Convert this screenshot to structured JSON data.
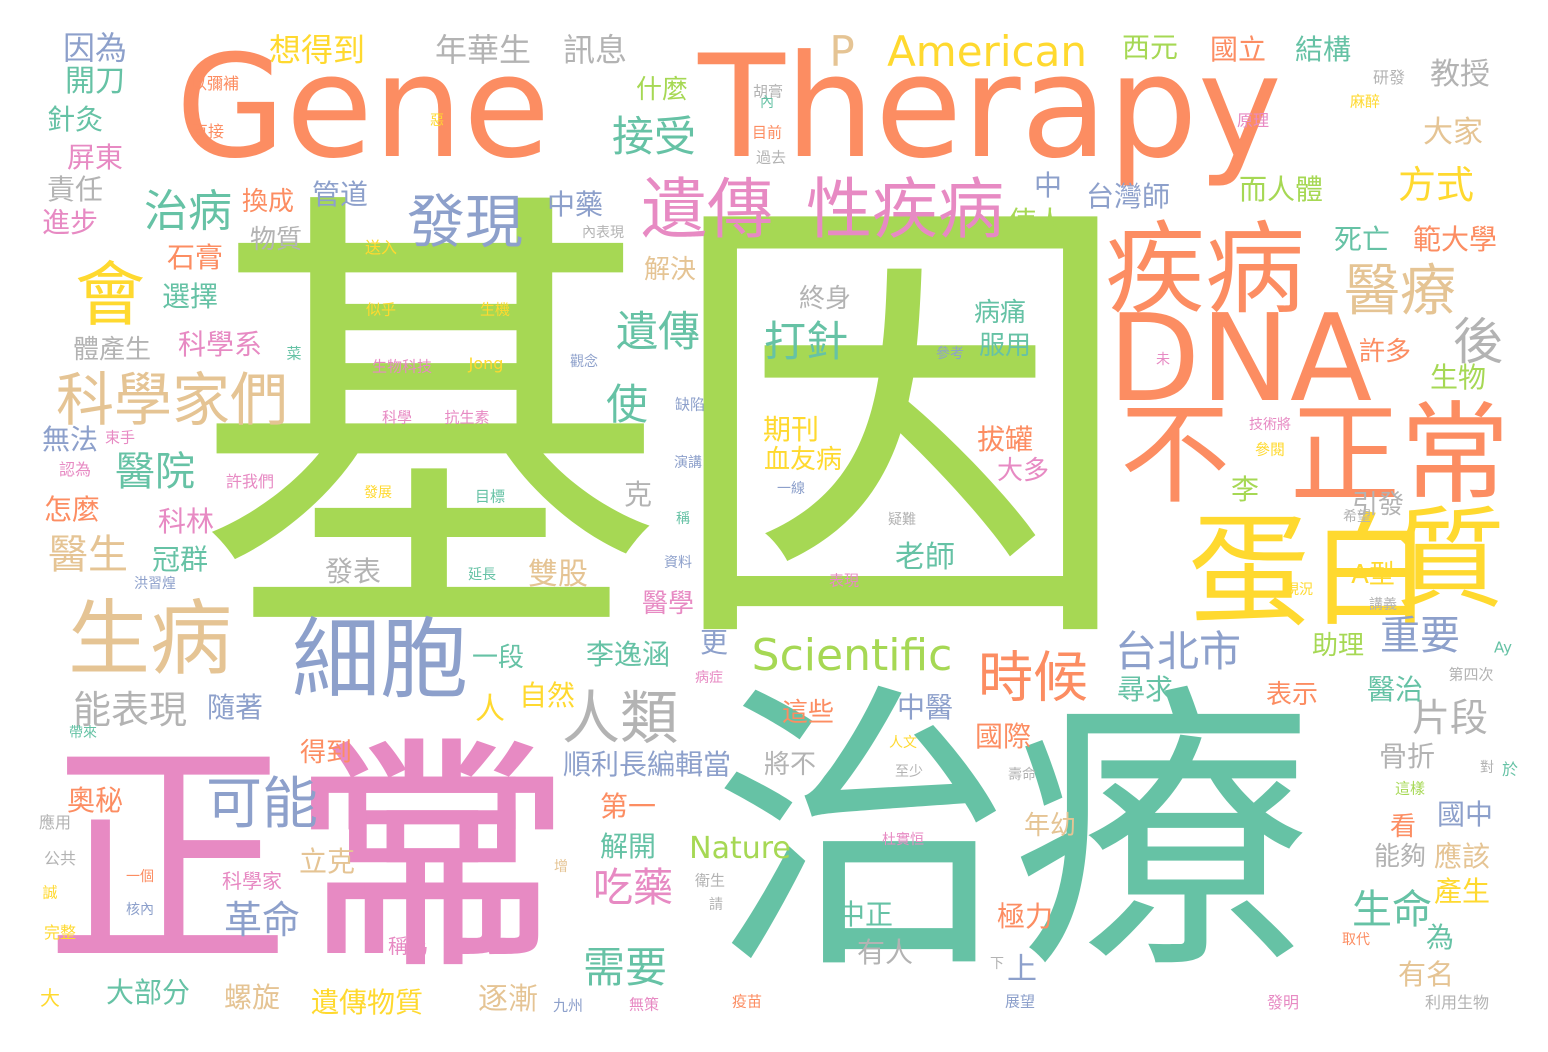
{
  "palette": {
    "green": "#a6d854",
    "orange": "#fc8d62",
    "teal": "#66c2a5",
    "pink": "#e78ac3",
    "blue": "#8da0cb",
    "yellow": "#ffd92f",
    "tan": "#e5c494",
    "gray": "#b3b3b3"
  },
  "words": [
    {
      "text": "基因",
      "color": "green"
    },
    {
      "text": "Gene",
      "color": "orange"
    },
    {
      "text": "Therapy",
      "color": "orange"
    },
    {
      "text": "治療",
      "color": "teal"
    },
    {
      "text": "正常",
      "color": "pink"
    },
    {
      "text": "常",
      "color": "pink"
    },
    {
      "text": "DNA",
      "color": "orange"
    },
    {
      "text": "蛋白",
      "color": "yellow"
    },
    {
      "text": "質",
      "color": "yellow"
    },
    {
      "text": "不",
      "color": "orange"
    },
    {
      "text": "正常",
      "color": "orange"
    },
    {
      "text": "疾病",
      "color": "orange"
    },
    {
      "text": "細胞",
      "color": "blue"
    },
    {
      "text": "生病",
      "color": "tan"
    },
    {
      "text": "遺傳",
      "color": "pink"
    },
    {
      "text": "性疾病",
      "color": "pink"
    },
    {
      "text": "會",
      "color": "yellow"
    },
    {
      "text": "科學家們",
      "color": "tan"
    },
    {
      "text": "發現",
      "color": "blue"
    },
    {
      "text": "人類",
      "color": "gray"
    },
    {
      "text": "可能",
      "color": "blue"
    },
    {
      "text": "時候",
      "color": "orange"
    },
    {
      "text": "醫療",
      "color": "tan"
    },
    {
      "text": "後",
      "color": "gray"
    },
    {
      "text": "Scientific",
      "color": "green"
    },
    {
      "text": "American",
      "color": "yellow"
    },
    {
      "text": "P",
      "color": "tan"
    },
    {
      "text": "台北市",
      "color": "blue"
    },
    {
      "text": "治病",
      "color": "teal"
    },
    {
      "text": "接受",
      "color": "teal"
    },
    {
      "text": "遺傳",
      "color": "teal"
    },
    {
      "text": "使",
      "color": "teal"
    },
    {
      "text": "打針",
      "color": "teal"
    },
    {
      "text": "醫院",
      "color": "teal"
    },
    {
      "text": "醫生",
      "color": "tan"
    },
    {
      "text": "能表現",
      "color": "gray"
    },
    {
      "text": "吃藥",
      "color": "pink"
    },
    {
      "text": "需要",
      "color": "teal"
    },
    {
      "text": "革命",
      "color": "blue"
    },
    {
      "text": "生命",
      "color": "teal"
    },
    {
      "text": "重要",
      "color": "blue"
    },
    {
      "text": "方式",
      "color": "yellow"
    },
    {
      "text": "片段",
      "color": "gray"
    },
    {
      "text": "想得到",
      "color": "yellow"
    },
    {
      "text": "年華生",
      "color": "gray"
    },
    {
      "text": "訊息",
      "color": "gray"
    },
    {
      "text": "因為",
      "color": "blue"
    },
    {
      "text": "開刀",
      "color": "teal"
    },
    {
      "text": "針灸",
      "color": "teal"
    },
    {
      "text": "屏東",
      "color": "pink"
    },
    {
      "text": "責任",
      "color": "gray"
    },
    {
      "text": "進步",
      "color": "pink"
    },
    {
      "text": "西元",
      "color": "green"
    },
    {
      "text": "國立",
      "color": "orange"
    },
    {
      "text": "結構",
      "color": "teal"
    },
    {
      "text": "教授",
      "color": "gray"
    },
    {
      "text": "大家",
      "color": "tan"
    },
    {
      "text": "什麼",
      "color": "green"
    },
    {
      "text": "而人體",
      "color": "green"
    },
    {
      "text": "台灣師",
      "color": "blue"
    },
    {
      "text": "中",
      "color": "blue"
    },
    {
      "text": "中藥",
      "color": "blue"
    },
    {
      "text": "管道",
      "color": "blue"
    },
    {
      "text": "換成",
      "color": "orange"
    },
    {
      "text": "物質",
      "color": "gray"
    },
    {
      "text": "石膏",
      "color": "orange"
    },
    {
      "text": "選擇",
      "color": "teal"
    },
    {
      "text": "科學系",
      "color": "pink"
    },
    {
      "text": "體產生",
      "color": "gray"
    },
    {
      "text": "無法",
      "color": "blue"
    },
    {
      "text": "怎麼",
      "color": "orange"
    },
    {
      "text": "科林",
      "color": "pink"
    },
    {
      "text": "冠群",
      "color": "teal"
    },
    {
      "text": "死亡",
      "color": "teal"
    },
    {
      "text": "範大學",
      "color": "orange"
    },
    {
      "text": "使人",
      "color": "green"
    },
    {
      "text": "解決",
      "color": "tan"
    },
    {
      "text": "終身",
      "color": "gray"
    },
    {
      "text": "病痛",
      "color": "teal"
    },
    {
      "text": "服用",
      "color": "teal"
    },
    {
      "text": "期刊",
      "color": "yellow"
    },
    {
      "text": "血友病",
      "color": "yellow"
    },
    {
      "text": "拔罐",
      "color": "orange"
    },
    {
      "text": "大多",
      "color": "pink"
    },
    {
      "text": "許多",
      "color": "orange"
    },
    {
      "text": "生物",
      "color": "green"
    },
    {
      "text": "李",
      "color": "green"
    },
    {
      "text": "引發",
      "color": "gray"
    },
    {
      "text": "老師",
      "color": "teal"
    },
    {
      "text": "克",
      "color": "gray"
    },
    {
      "text": "發表",
      "color": "gray"
    },
    {
      "text": "雙股",
      "color": "tan"
    },
    {
      "text": "A型",
      "color": "yellow"
    },
    {
      "text": "一段",
      "color": "teal"
    },
    {
      "text": "李逸涵",
      "color": "teal"
    },
    {
      "text": "醫學",
      "color": "pink"
    },
    {
      "text": "更",
      "color": "blue"
    },
    {
      "text": "自然",
      "color": "yellow"
    },
    {
      "text": "人",
      "color": "yellow"
    },
    {
      "text": "助理",
      "color": "green"
    },
    {
      "text": "醫治",
      "color": "teal"
    },
    {
      "text": "尋求",
      "color": "teal"
    },
    {
      "text": "表示",
      "color": "orange"
    },
    {
      "text": "隨著",
      "color": "blue"
    },
    {
      "text": "中醫",
      "color": "blue"
    },
    {
      "text": "這些",
      "color": "orange"
    },
    {
      "text": "國際",
      "color": "orange"
    },
    {
      "text": "順利長編輯當",
      "color": "blue"
    },
    {
      "text": "將不",
      "color": "gray"
    },
    {
      "text": "骨折",
      "color": "gray"
    },
    {
      "text": "奧秘",
      "color": "orange"
    },
    {
      "text": "得到",
      "color": "orange"
    },
    {
      "text": "第一",
      "color": "orange"
    },
    {
      "text": "解開",
      "color": "teal"
    },
    {
      "text": "Nature",
      "color": "green"
    },
    {
      "text": "年幼",
      "color": "tan"
    },
    {
      "text": "國中",
      "color": "blue"
    },
    {
      "text": "看",
      "color": "orange"
    },
    {
      "text": "能夠",
      "color": "gray"
    },
    {
      "text": "應該",
      "color": "tan"
    },
    {
      "text": "產生",
      "color": "yellow"
    },
    {
      "text": "立克",
      "color": "tan"
    },
    {
      "text": "中正",
      "color": "teal"
    },
    {
      "text": "有人",
      "color": "gray"
    },
    {
      "text": "極力",
      "color": "orange"
    },
    {
      "text": "為",
      "color": "teal"
    },
    {
      "text": "上",
      "color": "blue"
    },
    {
      "text": "有名",
      "color": "tan"
    },
    {
      "text": "大部分",
      "color": "teal"
    },
    {
      "text": "螺旋",
      "color": "tan"
    },
    {
      "text": "遺傳物質",
      "color": "yellow"
    },
    {
      "text": "逐漸",
      "color": "tan"
    },
    {
      "text": "大",
      "color": "yellow"
    },
    {
      "text": "研發",
      "color": "gray"
    },
    {
      "text": "麻醉",
      "color": "yellow"
    },
    {
      "text": "原理",
      "color": "pink"
    },
    {
      "text": "胡膏",
      "color": "gray"
    },
    {
      "text": "以彌補",
      "color": "orange"
    },
    {
      "text": "直接",
      "color": "orange"
    },
    {
      "text": "惡",
      "color": "yellow"
    },
    {
      "text": "內",
      "color": "teal"
    },
    {
      "text": "目前",
      "color": "orange"
    },
    {
      "text": "過去",
      "color": "gray"
    },
    {
      "text": "內表現",
      "color": "gray"
    },
    {
      "text": "送入",
      "color": "yellow"
    },
    {
      "text": "似乎",
      "color": "yellow"
    },
    {
      "text": "生機",
      "color": "yellow"
    },
    {
      "text": "生物科技",
      "color": "pink"
    },
    {
      "text": "Jong",
      "color": "yellow"
    },
    {
      "text": "觀念",
      "color": "blue"
    },
    {
      "text": "參考",
      "color": "blue"
    },
    {
      "text": "未",
      "color": "pink"
    },
    {
      "text": "菜",
      "color": "teal"
    },
    {
      "text": "科學",
      "color": "pink"
    },
    {
      "text": "抗生素",
      "color": "pink"
    },
    {
      "text": "缺陷",
      "color": "blue"
    },
    {
      "text": "束手",
      "color": "pink"
    },
    {
      "text": "認為",
      "color": "pink"
    },
    {
      "text": "許我們",
      "color": "pink"
    },
    {
      "text": "演講",
      "color": "blue"
    },
    {
      "text": "技術將",
      "color": "pink"
    },
    {
      "text": "參閱",
      "color": "yellow"
    },
    {
      "text": "發展",
      "color": "yellow"
    },
    {
      "text": "目標",
      "color": "teal"
    },
    {
      "text": "一線",
      "color": "blue"
    },
    {
      "text": "疑難",
      "color": "gray"
    },
    {
      "text": "希望",
      "color": "gray"
    },
    {
      "text": "稱",
      "color": "teal"
    },
    {
      "text": "資料",
      "color": "blue"
    },
    {
      "text": "洪習煌",
      "color": "blue"
    },
    {
      "text": "延長",
      "color": "teal"
    },
    {
      "text": "表現",
      "color": "pink"
    },
    {
      "text": "現況",
      "color": "yellow"
    },
    {
      "text": "講義",
      "color": "gray"
    },
    {
      "text": "Ay",
      "color": "teal"
    },
    {
      "text": "病症",
      "color": "pink"
    },
    {
      "text": "第四次",
      "color": "gray"
    },
    {
      "text": "帶來",
      "color": "teal"
    },
    {
      "text": "人文",
      "color": "yellow"
    },
    {
      "text": "至少",
      "color": "gray"
    },
    {
      "text": "壽命",
      "color": "gray"
    },
    {
      "text": "對",
      "color": "gray"
    },
    {
      "text": "這樣",
      "color": "green"
    },
    {
      "text": "於",
      "color": "teal"
    },
    {
      "text": "應用",
      "color": "gray"
    },
    {
      "text": "公共",
      "color": "gray"
    },
    {
      "text": "誠",
      "color": "yellow"
    },
    {
      "text": "完整",
      "color": "yellow"
    },
    {
      "text": "一個",
      "color": "orange"
    },
    {
      "text": "核內",
      "color": "blue"
    },
    {
      "text": "科學家",
      "color": "pink"
    },
    {
      "text": "衛生",
      "color": "gray"
    },
    {
      "text": "請",
      "color": "gray"
    },
    {
      "text": "增",
      "color": "tan"
    },
    {
      "text": "杜實恒",
      "color": "pink"
    },
    {
      "text": "稱為",
      "color": "pink"
    },
    {
      "text": "下",
      "color": "gray"
    },
    {
      "text": "展望",
      "color": "blue"
    },
    {
      "text": "九州",
      "color": "blue"
    },
    {
      "text": "無策",
      "color": "pink"
    },
    {
      "text": "疫苗",
      "color": "orange"
    },
    {
      "text": "發明",
      "color": "pink"
    },
    {
      "text": "利用生物",
      "color": "gray"
    },
    {
      "text": "取代",
      "color": "orange"
    }
  ]
}
